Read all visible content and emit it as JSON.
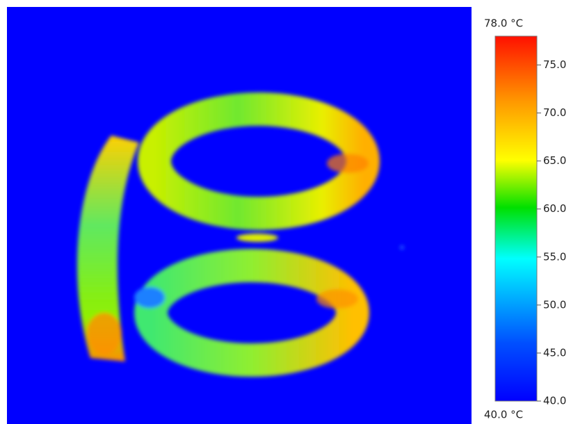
{
  "colorbar": {
    "max_label": "78.0 °C",
    "min_label": "40.0 °C",
    "range": [
      40,
      78
    ],
    "ticks": [
      {
        "value": 40,
        "label": "40.0"
      },
      {
        "value": 45,
        "label": "45.0"
      },
      {
        "value": 50,
        "label": "50.0"
      },
      {
        "value": 55,
        "label": "55.0"
      },
      {
        "value": 60,
        "label": "60.0"
      },
      {
        "value": 65,
        "label": "65.0"
      },
      {
        "value": 70,
        "label": "70.0"
      },
      {
        "value": 75,
        "label": "75.0"
      }
    ]
  }
}
